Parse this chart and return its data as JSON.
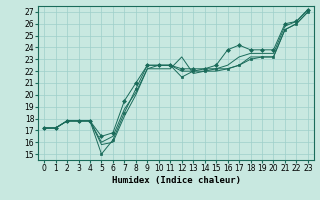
{
  "xlabel": "Humidex (Indice chaleur)",
  "xlim": [
    -0.5,
    23.5
  ],
  "ylim": [
    14.5,
    27.5
  ],
  "yticks": [
    15,
    16,
    17,
    18,
    19,
    20,
    21,
    22,
    23,
    24,
    25,
    26,
    27
  ],
  "xticks": [
    0,
    1,
    2,
    3,
    4,
    5,
    6,
    7,
    8,
    9,
    10,
    11,
    12,
    13,
    14,
    15,
    16,
    17,
    18,
    19,
    20,
    21,
    22,
    23
  ],
  "bg_color": "#c8e8e0",
  "grid_color": "#9ecfca",
  "line_color": "#1a6b5a",
  "series": [
    [
      17.2,
      17.2,
      17.8,
      17.8,
      17.8,
      15.0,
      16.2,
      18.5,
      20.5,
      22.5,
      22.5,
      22.5,
      21.5,
      22.0,
      22.0,
      22.2,
      22.2,
      22.5,
      23.0,
      23.2,
      23.2,
      25.5,
      26.0,
      27.0
    ],
    [
      17.2,
      17.2,
      17.8,
      17.8,
      17.8,
      16.0,
      16.5,
      18.8,
      20.2,
      22.2,
      22.5,
      22.5,
      22.0,
      22.0,
      22.2,
      22.2,
      22.5,
      23.2,
      23.5,
      23.5,
      23.5,
      25.8,
      26.2,
      27.2
    ],
    [
      17.2,
      17.2,
      17.8,
      17.8,
      17.8,
      16.5,
      16.8,
      19.5,
      21.0,
      22.5,
      22.5,
      22.5,
      22.2,
      22.2,
      22.2,
      22.5,
      23.8,
      24.2,
      23.8,
      23.8,
      23.8,
      26.0,
      26.2,
      27.2
    ],
    [
      17.2,
      17.2,
      17.8,
      17.8,
      17.8,
      15.8,
      16.0,
      18.2,
      20.0,
      22.2,
      22.2,
      22.2,
      23.2,
      21.8,
      22.0,
      22.0,
      22.2,
      22.5,
      23.2,
      23.2,
      23.2,
      25.5,
      26.0,
      27.0
    ]
  ],
  "marker_series": 2,
  "fontsize_tick": 5.5,
  "fontsize_xlabel": 6.5
}
